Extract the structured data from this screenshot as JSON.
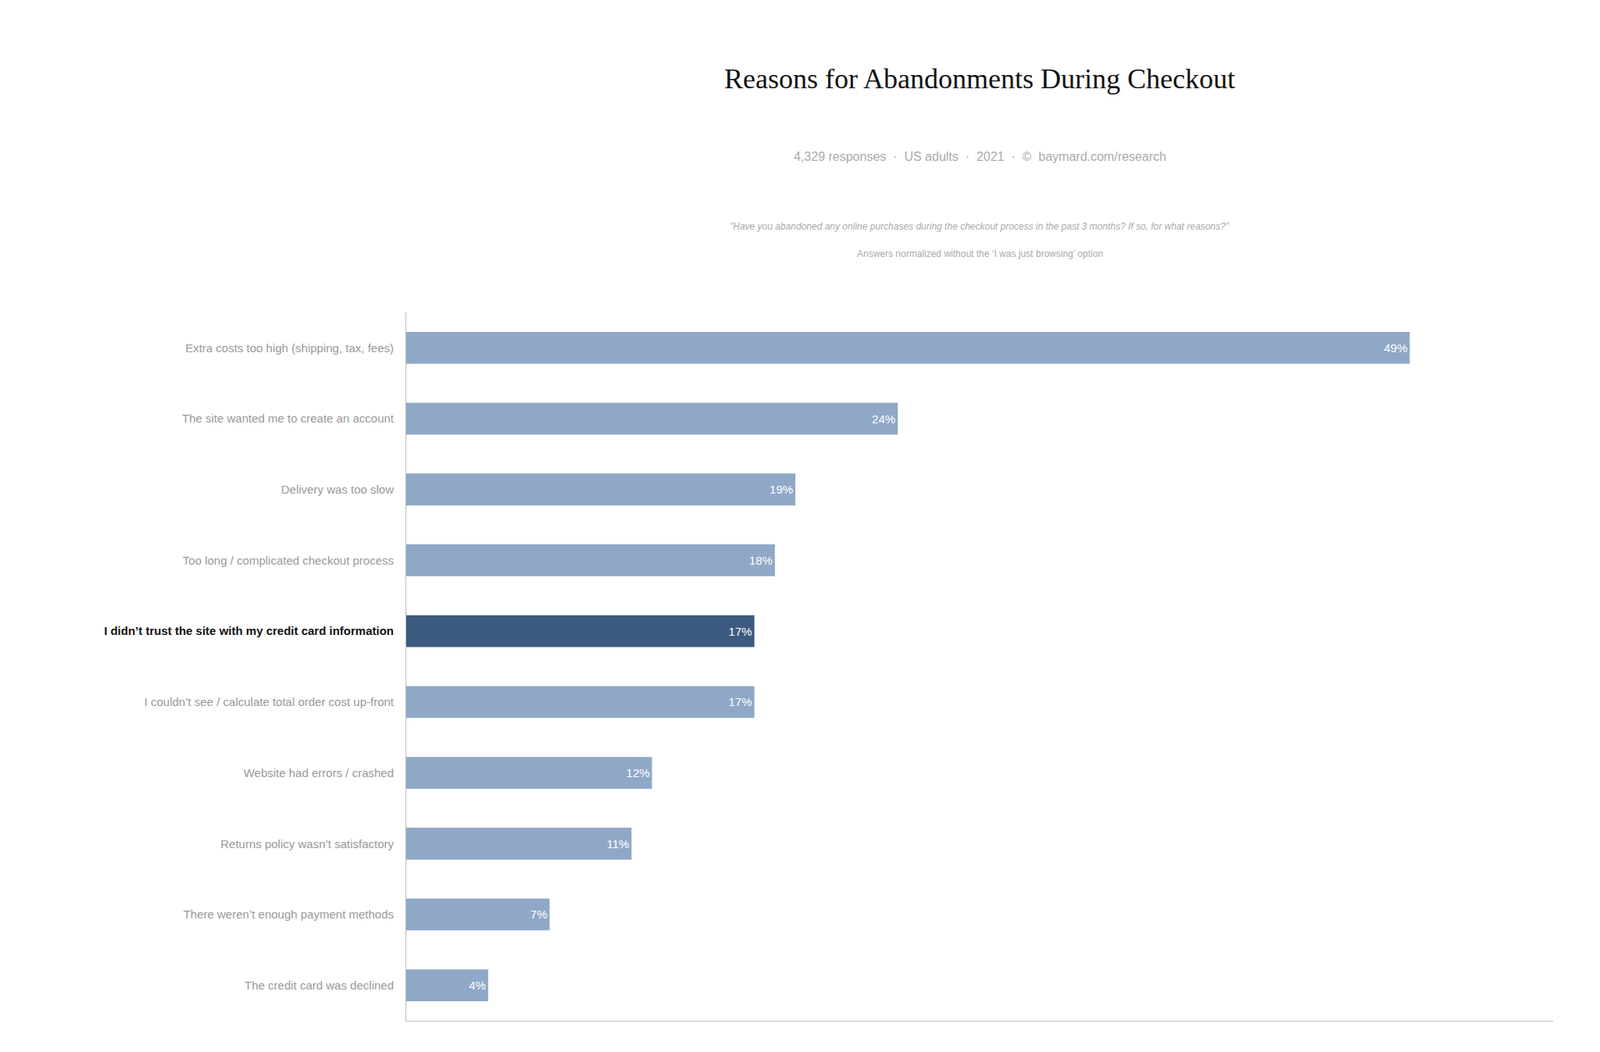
{
  "chart_data": {
    "type": "bar",
    "orientation": "horizontal",
    "title": "Reasons for Abandonments During Checkout",
    "subtitle": "4,329 responses  ·  US adults  ·  2021  ·  ©  baymard.com/research",
    "annotations": [
      "\"Have you abandoned any online purchases during the checkout process in the past 3 months? If so, for what reasons?\"",
      "Answers normalized without the ‘I was just browsing’ option"
    ],
    "categories": [
      "Extra costs too high (shipping, tax, fees)",
      "The site wanted me to create an account",
      "Delivery was too slow",
      "Too long / complicated checkout process",
      "I didn’t trust the site with my credit card information",
      "I couldn’t see / calculate total order cost up-front",
      "Website had errors / crashed",
      "Returns policy wasn’t satisfactory",
      "There weren’t enough payment methods",
      "The credit card was declined"
    ],
    "values": [
      49,
      24,
      19,
      18,
      17,
      17,
      12,
      11,
      7,
      4
    ],
    "value_labels": [
      "49%",
      "24%",
      "19%",
      "18%",
      "17%",
      "17%",
      "12%",
      "11%",
      "7%",
      "4%"
    ],
    "data_labels": true,
    "colors": [
      "#8fa8c8",
      "#8fa8c8",
      "#8fa8c8",
      "#8fa8c8",
      "#3d5a80",
      "#8fa8c8",
      "#8fa8c8",
      "#8fa8c8",
      "#8fa8c8",
      "#8fa8c8"
    ],
    "xlim": [
      0,
      56
    ],
    "grid": false,
    "tick_labels": "y"
  }
}
